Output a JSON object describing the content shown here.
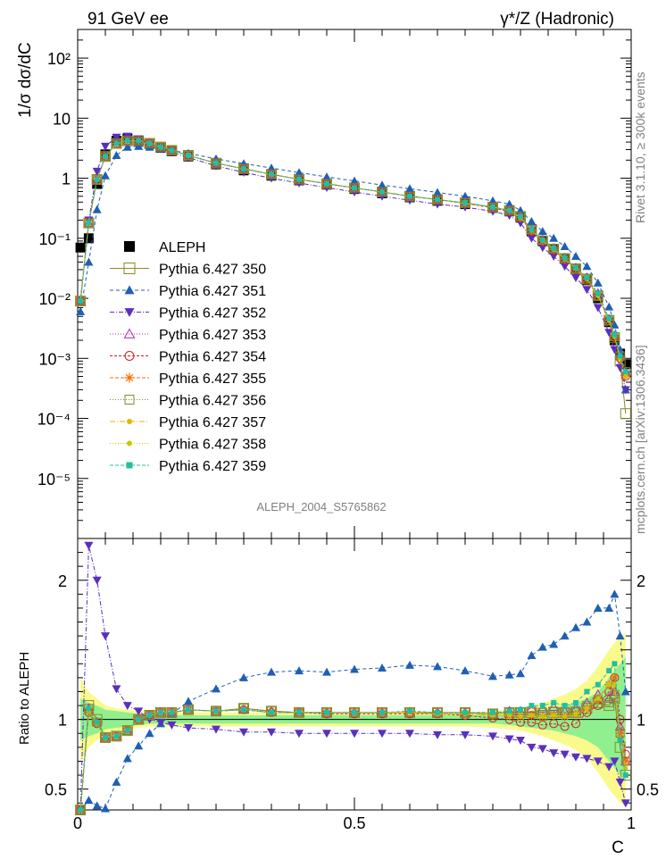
{
  "header": {
    "left": "91 GeV ee",
    "right": "γ*/Z (Hadronic)"
  },
  "side_labels": {
    "rivet": "Rivet 3.1.10, ≥ 300k events",
    "source": "mcplots.cern.ch [arXiv:1306.3436]"
  },
  "watermark": "ALEPH_2004_S5765862",
  "colors": {
    "data": "#000000",
    "band_inner": "#90f090",
    "band_outer": "#fafa8c",
    "s350": "#8a8a2a",
    "s351": "#1f5fb4",
    "s352": "#5a2fbf",
    "s353": "#b02ab0",
    "s354": "#d02020",
    "s355": "#ff6a00",
    "s356": "#8a8a2a",
    "s357": "#e0b800",
    "s358": "#c8c800",
    "s359": "#20c0a0"
  },
  "chart_data": {
    "type": "line",
    "title": "",
    "xlabel": "C",
    "ylabel": "1/σ  dσ/dC",
    "ratio_ylabel": "Ratio to ALEPH",
    "xlim": [
      0,
      1
    ],
    "ylim": [
      1e-06,
      300
    ],
    "yscale": "log",
    "ratio_ylim": [
      0.35,
      2.3
    ],
    "x_ticks": [
      "0",
      "0.5",
      "1"
    ],
    "y_ticks": [
      "10^2",
      "10",
      "1",
      "10^-1",
      "10^-2",
      "10^-3",
      "10^-4",
      "10^-5"
    ],
    "ratio_ticks": [
      "0.5",
      "1",
      "2"
    ],
    "legend_position": "center-left",
    "x": [
      0.005,
      0.02,
      0.035,
      0.05,
      0.07,
      0.09,
      0.11,
      0.13,
      0.15,
      0.17,
      0.2,
      0.25,
      0.3,
      0.35,
      0.4,
      0.45,
      0.5,
      0.55,
      0.6,
      0.65,
      0.7,
      0.75,
      0.78,
      0.8,
      0.82,
      0.84,
      0.86,
      0.88,
      0.9,
      0.92,
      0.94,
      0.96,
      0.97,
      0.98,
      0.99
    ],
    "series": [
      {
        "name": "ALEPH",
        "values": [
          0.07,
          0.1,
          0.8,
          2.5,
          4.2,
          4.6,
          4.2,
          3.7,
          3.2,
          2.8,
          2.3,
          1.7,
          1.35,
          1.1,
          0.92,
          0.78,
          0.66,
          0.56,
          0.48,
          0.42,
          0.37,
          0.32,
          0.28,
          0.22,
          0.13,
          0.09,
          0.065,
          0.045,
          0.03,
          0.02,
          0.01,
          0.004,
          0.002,
          0.0012,
          0.0008
        ]
      },
      {
        "name": "Pythia 6.427 350",
        "values": [
          0.009,
          0.18,
          0.95,
          2.3,
          3.8,
          4.2,
          4.2,
          3.8,
          3.3,
          2.9,
          2.4,
          1.78,
          1.44,
          1.16,
          0.96,
          0.81,
          0.69,
          0.59,
          0.5,
          0.44,
          0.39,
          0.33,
          0.29,
          0.23,
          0.14,
          0.09,
          0.066,
          0.046,
          0.031,
          0.021,
          0.011,
          0.0043,
          0.0022,
          0.0009,
          0.00012
        ],
        "ratio": [
          0.35,
          1.1,
          1.0,
          0.87,
          0.88,
          0.92,
          1.0,
          1.03,
          1.05,
          1.05,
          1.07,
          1.06,
          1.08,
          1.06,
          1.05,
          1.05,
          1.05,
          1.05,
          1.05,
          1.05,
          1.05,
          1.04,
          1.05,
          1.05,
          1.05,
          1.03,
          1.05,
          1.05,
          1.05,
          1.08,
          1.12,
          1.1,
          1.15,
          0.8,
          0.6
        ]
      },
      {
        "name": "Pythia 6.427 351",
        "values": [
          0.006,
          0.04,
          0.3,
          1.1,
          2.4,
          3.3,
          3.4,
          3.3,
          3.1,
          2.9,
          2.6,
          2.1,
          1.75,
          1.48,
          1.24,
          1.05,
          0.9,
          0.77,
          0.67,
          0.58,
          0.5,
          0.42,
          0.37,
          0.29,
          0.19,
          0.13,
          0.1,
          0.073,
          0.05,
          0.034,
          0.018,
          0.0072,
          0.0036,
          0.0014,
          0.0003
        ],
        "ratio": [
          0.32,
          0.42,
          0.38,
          0.36,
          0.55,
          0.72,
          0.81,
          0.9,
          0.97,
          1.04,
          1.13,
          1.22,
          1.3,
          1.34,
          1.35,
          1.34,
          1.36,
          1.37,
          1.39,
          1.38,
          1.35,
          1.31,
          1.32,
          1.33,
          1.46,
          1.52,
          1.54,
          1.6,
          1.66,
          1.7,
          1.8,
          1.8,
          1.9,
          1.6,
          1.2
        ]
      },
      {
        "name": "Pythia 6.427 352",
        "values": [
          0.009,
          0.2,
          1.3,
          3.4,
          4.8,
          5.0,
          4.5,
          3.8,
          3.2,
          2.7,
          2.2,
          1.6,
          1.25,
          1.0,
          0.83,
          0.7,
          0.59,
          0.5,
          0.43,
          0.37,
          0.33,
          0.28,
          0.24,
          0.18,
          0.1,
          0.07,
          0.05,
          0.034,
          0.022,
          0.014,
          0.007,
          0.0027,
          0.0014,
          0.0007,
          0.0003
        ],
        "ratio": [
          0.35,
          2.25,
          2.0,
          1.6,
          1.22,
          1.1,
          1.06,
          1.0,
          0.98,
          0.96,
          0.94,
          0.93,
          0.91,
          0.91,
          0.9,
          0.9,
          0.9,
          0.9,
          0.9,
          0.89,
          0.89,
          0.88,
          0.86,
          0.85,
          0.8,
          0.79,
          0.76,
          0.75,
          0.73,
          0.72,
          0.7,
          0.66,
          0.7,
          0.55,
          0.4
        ]
      },
      {
        "name": "Pythia 6.427 353",
        "values": [
          0.009,
          0.18,
          0.95,
          2.3,
          3.8,
          4.2,
          4.2,
          3.8,
          3.3,
          2.9,
          2.4,
          1.78,
          1.43,
          1.16,
          0.96,
          0.81,
          0.69,
          0.59,
          0.5,
          0.44,
          0.39,
          0.33,
          0.29,
          0.23,
          0.14,
          0.095,
          0.068,
          0.047,
          0.032,
          0.022,
          0.012,
          0.0045,
          0.0024,
          0.0011,
          0.0006
        ],
        "ratio": [
          0.35,
          1.08,
          0.98,
          0.87,
          0.88,
          0.92,
          1.0,
          1.03,
          1.05,
          1.05,
          1.07,
          1.06,
          1.07,
          1.06,
          1.05,
          1.05,
          1.05,
          1.05,
          1.05,
          1.05,
          1.05,
          1.04,
          1.06,
          1.06,
          1.08,
          1.08,
          1.09,
          1.06,
          1.08,
          1.12,
          1.18,
          1.15,
          1.2,
          0.95,
          0.7
        ]
      },
      {
        "name": "Pythia 6.427 354",
        "values": [
          0.009,
          0.18,
          0.95,
          2.3,
          3.8,
          4.2,
          4.2,
          3.8,
          3.3,
          2.9,
          2.4,
          1.78,
          1.43,
          1.16,
          0.96,
          0.81,
          0.69,
          0.59,
          0.5,
          0.44,
          0.38,
          0.32,
          0.28,
          0.22,
          0.13,
          0.088,
          0.063,
          0.044,
          0.03,
          0.02,
          0.011,
          0.0042,
          0.0022,
          0.001,
          0.0005
        ],
        "ratio": [
          0.35,
          1.05,
          0.97,
          0.87,
          0.88,
          0.92,
          1.0,
          1.03,
          1.05,
          1.05,
          1.07,
          1.06,
          1.07,
          1.05,
          1.05,
          1.04,
          1.04,
          1.04,
          1.04,
          1.04,
          1.03,
          1.01,
          1.0,
          0.98,
          0.98,
          0.96,
          0.97,
          0.95,
          0.97,
          1.05,
          1.1,
          1.2,
          1.3,
          1.0,
          0.75
        ]
      },
      {
        "name": "Pythia 6.427 355",
        "values": [
          0.009,
          0.18,
          0.95,
          2.3,
          3.8,
          4.2,
          4.2,
          3.8,
          3.3,
          2.9,
          2.4,
          1.78,
          1.43,
          1.16,
          0.96,
          0.81,
          0.69,
          0.59,
          0.5,
          0.44,
          0.38,
          0.33,
          0.29,
          0.22,
          0.135,
          0.09,
          0.065,
          0.045,
          0.031,
          0.021,
          0.011,
          0.0043,
          0.0023,
          0.001,
          0.0005
        ],
        "ratio": [
          0.35,
          1.06,
          0.97,
          0.87,
          0.88,
          0.92,
          1.0,
          1.03,
          1.05,
          1.05,
          1.07,
          1.06,
          1.07,
          1.05,
          1.05,
          1.05,
          1.05,
          1.05,
          1.05,
          1.04,
          1.04,
          1.03,
          1.03,
          1.02,
          1.03,
          1.02,
          1.03,
          1.02,
          1.04,
          1.08,
          1.15,
          1.25,
          1.3,
          0.9,
          0.7
        ]
      },
      {
        "name": "Pythia 6.427 356",
        "values": [
          0.009,
          0.18,
          0.95,
          2.3,
          3.8,
          4.2,
          4.2,
          3.8,
          3.3,
          2.9,
          2.4,
          1.78,
          1.44,
          1.16,
          0.96,
          0.81,
          0.69,
          0.59,
          0.5,
          0.44,
          0.39,
          0.33,
          0.29,
          0.23,
          0.14,
          0.093,
          0.067,
          0.046,
          0.031,
          0.021,
          0.011,
          0.0043,
          0.0023,
          0.0011,
          0.0006
        ],
        "ratio": [
          0.35,
          1.08,
          0.98,
          0.87,
          0.88,
          0.92,
          1.0,
          1.03,
          1.05,
          1.05,
          1.07,
          1.06,
          1.08,
          1.06,
          1.05,
          1.05,
          1.05,
          1.05,
          1.05,
          1.05,
          1.05,
          1.04,
          1.05,
          1.05,
          1.06,
          1.05,
          1.06,
          1.05,
          1.06,
          1.1,
          1.14,
          1.12,
          1.18,
          0.9,
          0.7
        ]
      },
      {
        "name": "Pythia 6.427 357",
        "values": [
          0.009,
          0.18,
          0.95,
          2.3,
          3.8,
          4.2,
          4.2,
          3.8,
          3.3,
          2.9,
          2.4,
          1.78,
          1.43,
          1.16,
          0.96,
          0.81,
          0.69,
          0.59,
          0.5,
          0.44,
          0.38,
          0.33,
          0.29,
          0.22,
          0.135,
          0.09,
          0.065,
          0.045,
          0.031,
          0.021,
          0.011,
          0.0043,
          0.0023,
          0.001,
          0.0005
        ],
        "ratio": [
          0.35,
          1.06,
          0.97,
          0.87,
          0.88,
          0.92,
          1.0,
          1.03,
          1.05,
          1.05,
          1.07,
          1.06,
          1.07,
          1.05,
          1.05,
          1.05,
          1.05,
          1.05,
          1.05,
          1.04,
          1.04,
          1.03,
          1.03,
          1.02,
          1.03,
          1.02,
          1.03,
          1.02,
          1.04,
          1.08,
          1.15,
          1.25,
          1.25,
          0.85,
          0.65
        ]
      },
      {
        "name": "Pythia 6.427 358",
        "values": [
          0.009,
          0.18,
          0.95,
          2.3,
          3.8,
          4.2,
          4.2,
          3.8,
          3.3,
          2.9,
          2.4,
          1.78,
          1.43,
          1.16,
          0.96,
          0.81,
          0.69,
          0.59,
          0.5,
          0.44,
          0.38,
          0.33,
          0.29,
          0.22,
          0.135,
          0.09,
          0.065,
          0.045,
          0.031,
          0.021,
          0.011,
          0.0043,
          0.0023,
          0.001,
          0.0005
        ],
        "ratio": [
          0.35,
          1.06,
          0.97,
          0.87,
          0.88,
          0.92,
          1.0,
          1.03,
          1.05,
          1.05,
          1.07,
          1.06,
          1.07,
          1.05,
          1.05,
          1.05,
          1.05,
          1.05,
          1.05,
          1.04,
          1.04,
          1.03,
          1.03,
          1.02,
          1.03,
          1.02,
          1.03,
          1.02,
          1.04,
          1.08,
          1.15,
          1.25,
          1.25,
          0.85,
          0.65
        ]
      },
      {
        "name": "Pythia 6.427 359",
        "values": [
          0.009,
          0.18,
          0.95,
          2.3,
          3.8,
          4.2,
          4.2,
          3.8,
          3.3,
          2.9,
          2.4,
          1.78,
          1.43,
          1.16,
          0.96,
          0.81,
          0.69,
          0.59,
          0.5,
          0.44,
          0.39,
          0.33,
          0.29,
          0.23,
          0.14,
          0.093,
          0.068,
          0.047,
          0.032,
          0.022,
          0.012,
          0.0046,
          0.0025,
          0.0011,
          0.0006
        ],
        "ratio": [
          0.35,
          1.08,
          0.98,
          0.87,
          0.88,
          0.92,
          1.0,
          1.03,
          1.05,
          1.05,
          1.07,
          1.06,
          1.07,
          1.05,
          1.05,
          1.05,
          1.05,
          1.05,
          1.06,
          1.05,
          1.05,
          1.05,
          1.06,
          1.07,
          1.1,
          1.1,
          1.12,
          1.1,
          1.12,
          1.2,
          1.25,
          1.35,
          1.4,
          0.85,
          0.6
        ]
      }
    ],
    "band_inner": [
      0.85,
      0.88,
      0.9,
      0.93,
      0.94,
      0.95,
      0.96,
      0.97,
      0.97,
      0.97,
      0.97,
      0.97,
      0.97,
      0.97,
      0.97,
      0.97,
      0.97,
      0.97,
      0.97,
      0.97,
      0.97,
      0.97,
      0.96,
      0.95,
      0.94,
      0.93,
      0.92,
      0.9,
      0.88,
      0.85,
      0.8,
      0.7,
      0.65,
      0.6,
      0.55
    ],
    "band_outer": [
      0.7,
      0.8,
      0.85,
      0.9,
      0.92,
      0.93,
      0.94,
      0.95,
      0.95,
      0.95,
      0.95,
      0.95,
      0.95,
      0.95,
      0.95,
      0.95,
      0.95,
      0.95,
      0.95,
      0.95,
      0.95,
      0.94,
      0.93,
      0.92,
      0.9,
      0.88,
      0.85,
      0.82,
      0.78,
      0.72,
      0.62,
      0.5,
      0.45,
      0.4,
      0.38
    ]
  }
}
